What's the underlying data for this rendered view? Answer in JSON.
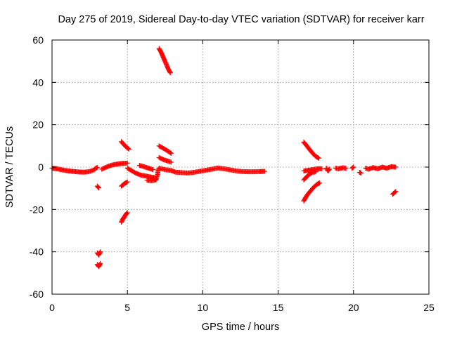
{
  "chart_data": {
    "type": "scatter",
    "title": "Day 275 of 2019, Sidereal Day-to-day VTEC variation (SDTVAR) for receiver karr",
    "xlabel": "GPS time / hours",
    "ylabel": "SDTVAR / TECUs",
    "xlim": [
      0,
      25
    ],
    "ylim": [
      -60,
      60
    ],
    "xticks": [
      "0",
      "5",
      "10",
      "15",
      "20",
      "25"
    ],
    "yticks": [
      "60",
      "40",
      "20",
      "0",
      "-20",
      "-40",
      "-60"
    ],
    "grid": true,
    "marker": "plus",
    "color": "#ff0000",
    "series": [
      {
        "name": "arc-01",
        "points": [
          [
            0.0,
            -0.5
          ],
          [
            0.3,
            -0.8
          ],
          [
            0.6,
            -1.2
          ],
          [
            0.9,
            -1.6
          ],
          [
            1.2,
            -1.9
          ],
          [
            1.5,
            -2.1
          ],
          [
            1.8,
            -2.3
          ],
          [
            2.1,
            -2.4
          ],
          [
            2.4,
            -2.2
          ],
          [
            2.6,
            -1.8
          ],
          [
            2.8,
            -1.2
          ],
          [
            2.9,
            -0.5
          ],
          [
            3.0,
            -0.2
          ]
        ]
      },
      {
        "name": "arc-02",
        "points": [
          [
            3.3,
            -1.0
          ],
          [
            3.6,
            0.0
          ],
          [
            3.9,
            0.8
          ],
          [
            4.2,
            1.3
          ],
          [
            4.5,
            1.6
          ],
          [
            4.8,
            1.8
          ],
          [
            5.0,
            1.9
          ]
        ]
      },
      {
        "name": "arc-03",
        "points": [
          [
            3.0,
            -9.0
          ],
          [
            3.1,
            -9.8
          ]
        ]
      },
      {
        "name": "arc-04",
        "points": [
          [
            3.0,
            -40.5
          ],
          [
            3.1,
            -41.5
          ],
          [
            3.2,
            -40.0
          ]
        ]
      },
      {
        "name": "arc-05",
        "points": [
          [
            3.0,
            -46.0
          ],
          [
            3.1,
            -47.0
          ],
          [
            3.2,
            -45.5
          ]
        ]
      },
      {
        "name": "arc-06",
        "points": [
          [
            4.6,
            12.0
          ],
          [
            4.75,
            10.8
          ],
          [
            4.9,
            9.6
          ],
          [
            5.1,
            8.5
          ]
        ]
      },
      {
        "name": "arc-07",
        "points": [
          [
            4.6,
            -9.0
          ],
          [
            4.8,
            -7.8
          ],
          [
            5.0,
            -7.0
          ]
        ]
      },
      {
        "name": "arc-08",
        "points": [
          [
            4.6,
            -26.0
          ],
          [
            4.7,
            -24.5
          ],
          [
            4.8,
            -23.5
          ],
          [
            4.9,
            -22.3
          ],
          [
            5.0,
            -21.5
          ]
        ]
      },
      {
        "name": "arc-09",
        "points": [
          [
            5.0,
            -0.5
          ],
          [
            5.3,
            -1.8
          ],
          [
            5.6,
            -3.0
          ],
          [
            5.9,
            -3.8
          ],
          [
            6.2,
            -4.2
          ],
          [
            6.5,
            -4.6
          ],
          [
            6.8,
            -5.0
          ],
          [
            6.9,
            -6.0
          ]
        ]
      },
      {
        "name": "arc-10",
        "points": [
          [
            6.3,
            -6.2
          ],
          [
            6.6,
            -6.4
          ],
          [
            6.9,
            -6.0
          ],
          [
            7.0,
            -3.5
          ],
          [
            7.05,
            -1.0
          ]
        ]
      },
      {
        "name": "arc-11",
        "points": [
          [
            5.8,
            0.8
          ],
          [
            6.1,
            0.2
          ],
          [
            6.4,
            -0.5
          ],
          [
            6.7,
            -1.2
          ]
        ]
      },
      {
        "name": "arc-12",
        "points": [
          [
            7.1,
            -0.5
          ],
          [
            7.5,
            -1.2
          ],
          [
            7.9,
            -1.6
          ],
          [
            8.2,
            -2.4
          ],
          [
            8.6,
            -2.6
          ],
          [
            9.0,
            -2.8
          ],
          [
            9.4,
            -2.5
          ],
          [
            9.8,
            -2.0
          ],
          [
            10.2,
            -1.5
          ],
          [
            10.6,
            -1.0
          ],
          [
            11.0,
            -0.4
          ],
          [
            11.4,
            -0.8
          ],
          [
            11.8,
            -1.3
          ],
          [
            12.2,
            -1.8
          ],
          [
            12.6,
            -2.1
          ],
          [
            13.0,
            -2.2
          ],
          [
            13.4,
            -2.2
          ],
          [
            13.8,
            -2.1
          ],
          [
            14.1,
            -2.0
          ]
        ]
      },
      {
        "name": "arc-13",
        "points": [
          [
            7.1,
            56.0
          ],
          [
            7.25,
            54.0
          ],
          [
            7.4,
            51.5
          ],
          [
            7.55,
            49.0
          ],
          [
            7.7,
            46.5
          ],
          [
            7.85,
            44.5
          ]
        ]
      },
      {
        "name": "arc-14",
        "points": [
          [
            7.1,
            10.0
          ],
          [
            7.4,
            8.8
          ],
          [
            7.7,
            7.5
          ],
          [
            7.9,
            6.5
          ]
        ]
      },
      {
        "name": "arc-15",
        "points": [
          [
            7.1,
            4.5
          ],
          [
            7.4,
            3.5
          ],
          [
            7.7,
            2.8
          ],
          [
            7.9,
            2.3
          ]
        ]
      },
      {
        "name": "arc-16",
        "points": [
          [
            16.7,
            11.8
          ],
          [
            16.9,
            10.0
          ],
          [
            17.1,
            8.2
          ],
          [
            17.3,
            6.4
          ],
          [
            17.5,
            5.0
          ],
          [
            17.7,
            4.2
          ]
        ]
      },
      {
        "name": "arc-17",
        "points": [
          [
            16.7,
            -1.8
          ],
          [
            17.0,
            -1.5
          ],
          [
            17.3,
            -1.2
          ],
          [
            17.6,
            -0.8
          ],
          [
            17.9,
            -0.8
          ]
        ]
      },
      {
        "name": "arc-18",
        "points": [
          [
            16.7,
            -6.0
          ],
          [
            16.9,
            -4.5
          ],
          [
            17.1,
            -3.2
          ],
          [
            17.3,
            -2.5
          ],
          [
            17.5,
            -2.2
          ]
        ]
      },
      {
        "name": "arc-19",
        "points": [
          [
            16.7,
            -16.0
          ],
          [
            16.85,
            -14.0
          ],
          [
            17.0,
            -12.5
          ],
          [
            17.2,
            -10.8
          ],
          [
            17.4,
            -9.2
          ],
          [
            17.6,
            -8.0
          ],
          [
            17.75,
            -7.5
          ]
        ]
      },
      {
        "name": "arc-20",
        "points": [
          [
            18.2,
            -0.5
          ],
          [
            18.3,
            -1.8
          ],
          [
            18.4,
            -1.0
          ]
        ]
      },
      {
        "name": "arc-21",
        "points": [
          [
            18.8,
            -0.5
          ],
          [
            19.0,
            -0.8
          ],
          [
            19.3,
            -0.3
          ],
          [
            19.5,
            -0.6
          ]
        ]
      },
      {
        "name": "arc-22",
        "points": [
          [
            19.9,
            -0.5
          ],
          [
            20.0,
            0.0
          ]
        ]
      },
      {
        "name": "arc-23",
        "points": [
          [
            20.4,
            -2.5
          ],
          [
            20.5,
            -2.8
          ]
        ]
      },
      {
        "name": "arc-24",
        "points": [
          [
            20.8,
            -0.5
          ],
          [
            21.0,
            -1.0
          ],
          [
            21.3,
            -0.2
          ],
          [
            21.6,
            -0.8
          ],
          [
            21.9,
            0.0
          ],
          [
            22.2,
            -0.5
          ],
          [
            22.5,
            0.2
          ],
          [
            22.8,
            0.0
          ]
        ]
      },
      {
        "name": "arc-25",
        "points": [
          [
            22.6,
            -12.8
          ],
          [
            22.8,
            -11.5
          ]
        ]
      }
    ]
  }
}
